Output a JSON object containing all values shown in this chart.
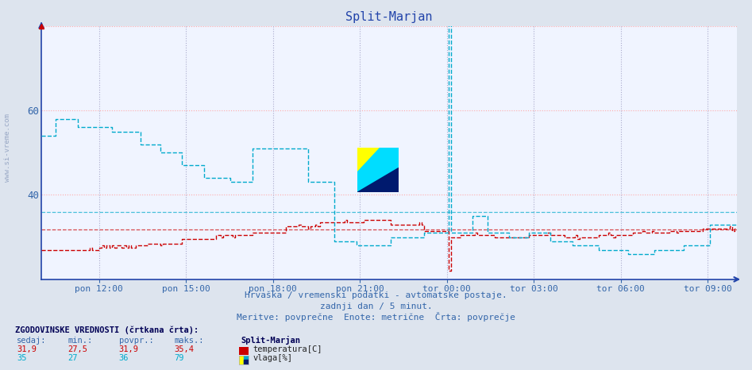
{
  "title": "Split-Marjan",
  "title_color": "#2244aa",
  "bg_color": "#dde4ee",
  "plot_bg_color": "#f0f4ff",
  "text1": "Hrvaška / vremenski podatki - avtomatske postaje.",
  "text2": "zadnji dan / 5 minut.",
  "text3": "Meritve: povprečne  Enote: metrične  Črta: povprečje",
  "hist_label": "ZGODOVINSKE VREDNOSTI (črtkana črta):",
  "legend_title": "Split-Marjan",
  "temp_row": [
    "31,9",
    "27,5",
    "31,9",
    "35,4",
    "temperatura[C]"
  ],
  "hum_row": [
    "35",
    "27",
    "36",
    "79",
    "vlaga[%]"
  ],
  "temp_color": "#cc0000",
  "hum_color": "#00aacc",
  "avg_temp": 31.9,
  "avg_hum": 36.0,
  "ylim": [
    20,
    80
  ],
  "xlabel_color": "#3366aa",
  "grid_color_h": "#ffaaaa",
  "grid_color_v": "#aaaacc",
  "axis_color": "#2244aa",
  "watermark": "www.si-vreme.com",
  "x_tick_labels": [
    "pon 12:00",
    "pon 15:00",
    "pon 18:00",
    "pon 21:00",
    "tor 00:00",
    "tor 03:00",
    "tor 06:00",
    "tor 09:00"
  ],
  "x_tick_positions": [
    0.083,
    0.208,
    0.333,
    0.458,
    0.583,
    0.708,
    0.833,
    0.958
  ]
}
